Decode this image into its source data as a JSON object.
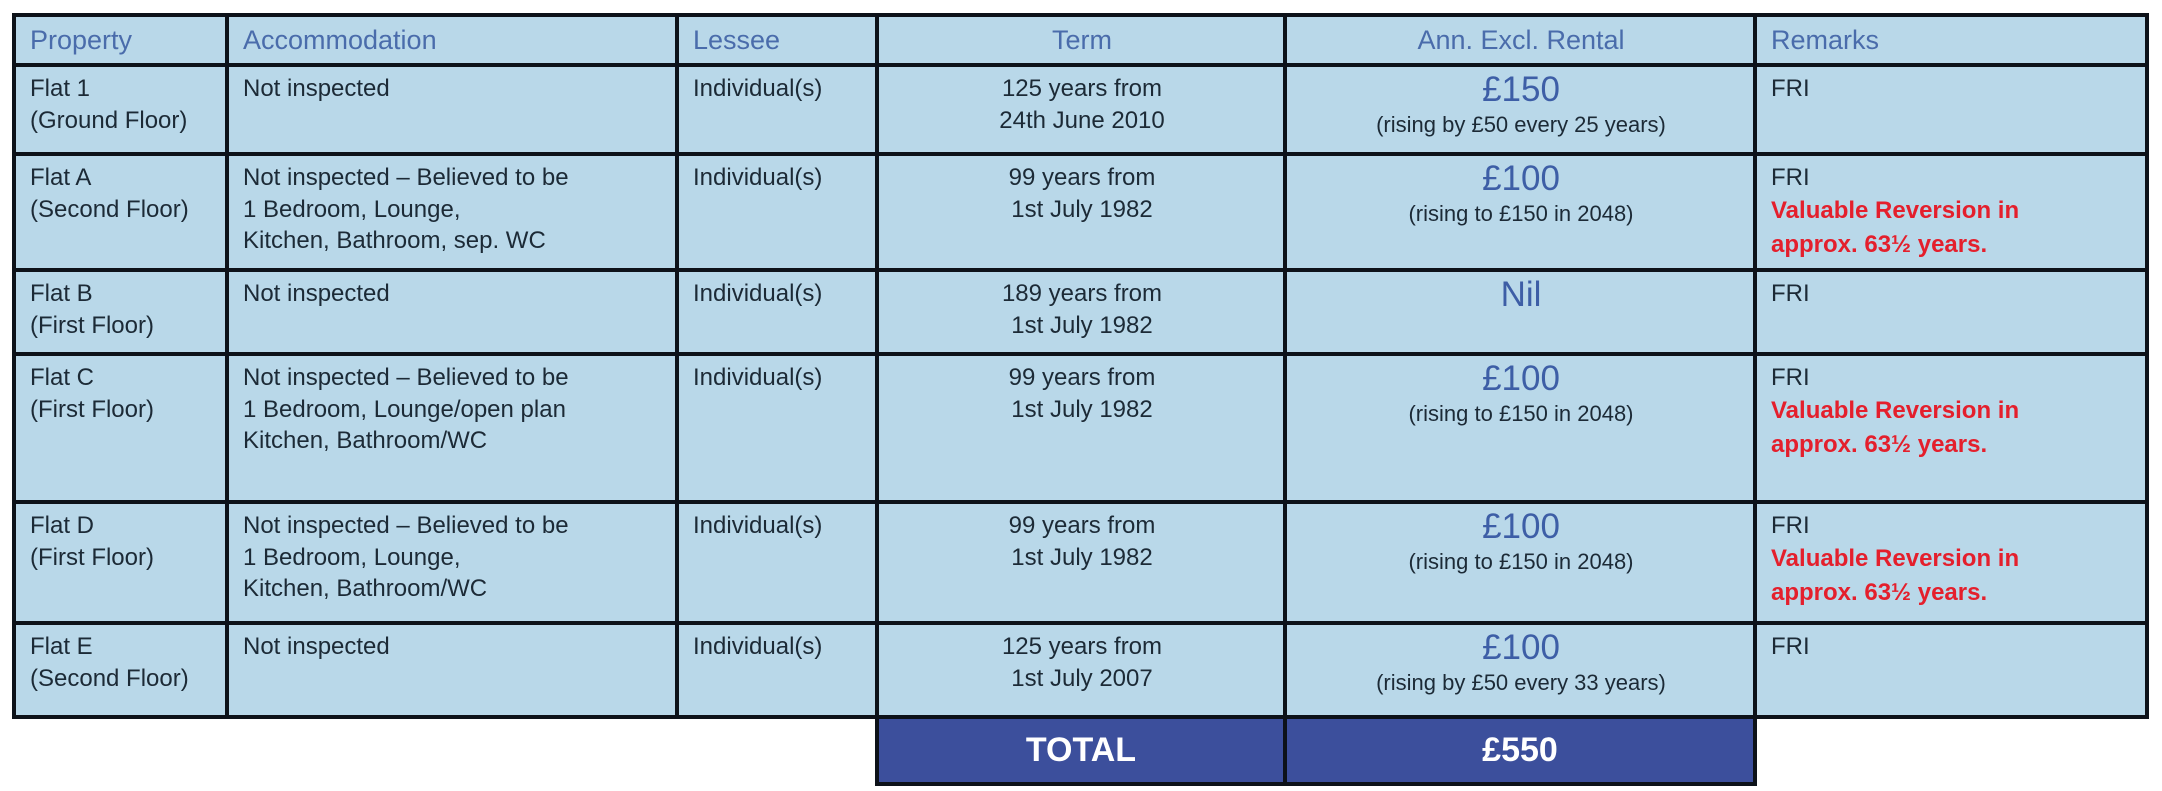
{
  "colors": {
    "cell_background": "#b9d8e9",
    "border": "#0d1219",
    "header_text": "#4a6cab",
    "body_text": "#1c2a36",
    "rental_value_text": "#3d5ea6",
    "warning_text": "#e41f2c",
    "total_row_background": "#3c4f9c",
    "total_row_text": "#ffffff"
  },
  "table": {
    "headers": [
      "Property",
      "Accommodation",
      "Lessee",
      "Term",
      "Ann. Excl. Rental",
      "Remarks"
    ],
    "rows": [
      {
        "property": "Flat 1\n(Ground Floor)",
        "accommodation": "Not inspected",
        "lessee": "Individual(s)",
        "term": "125 years from\n24th June 2010",
        "rental_value": "£150",
        "rental_note": "(rising by £50 every 25 years)",
        "remarks": "FRI",
        "warning": ""
      },
      {
        "property": "Flat A\n(Second Floor)",
        "accommodation": "Not inspected – Believed to be\n1 Bedroom, Lounge,\nKitchen, Bathroom, sep. WC",
        "lessee": "Individual(s)",
        "term": "99 years from\n1st July 1982",
        "rental_value": "£100",
        "rental_note": "(rising to £150 in 2048)",
        "remarks": "FRI",
        "warning": "Valuable Reversion in\napprox. 63½ years."
      },
      {
        "property": "Flat B\n(First Floor)",
        "accommodation": "Not inspected",
        "lessee": "Individual(s)",
        "term": "189 years from\n1st July 1982",
        "rental_value": "Nil",
        "rental_note": "",
        "remarks": "FRI",
        "warning": ""
      },
      {
        "property": "Flat C\n(First Floor)",
        "accommodation": "Not inspected – Believed to be\n1 Bedroom, Lounge/open plan\nKitchen, Bathroom/WC",
        "lessee": "Individual(s)",
        "term": "99 years from\n1st July 1982",
        "rental_value": "£100",
        "rental_note": "(rising to £150 in 2048)",
        "remarks": "FRI",
        "warning": "Valuable Reversion in\napprox. 63½ years."
      },
      {
        "property": "Flat D\n(First Floor)",
        "accommodation": "Not inspected – Believed to be\n1 Bedroom, Lounge,\nKitchen, Bathroom/WC",
        "lessee": "Individual(s)",
        "term": "99 years from\n1st July 1982",
        "rental_value": "£100",
        "rental_note": "(rising to £150 in 2048)",
        "remarks": "FRI",
        "warning": "Valuable Reversion in\napprox. 63½ years."
      },
      {
        "property": "Flat E\n(Second Floor)",
        "accommodation": "Not inspected",
        "lessee": "Individual(s)",
        "term": "125 years from\n1st July 2007",
        "rental_value": "£100",
        "rental_note": "(rising by £50 every 33 years)",
        "remarks": "FRI",
        "warning": ""
      }
    ],
    "total_label": "TOTAL",
    "total_value": "£550"
  }
}
